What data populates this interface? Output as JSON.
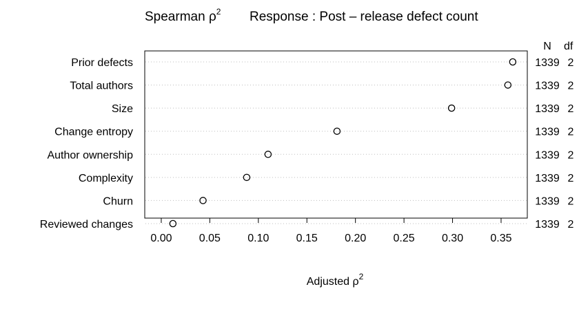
{
  "chart_data": {
    "type": "scatter",
    "title": {
      "left_main": "Spearman ρ",
      "left_sup": "2",
      "right": "Response : Post – release defect count"
    },
    "xlabel": {
      "main": "Adjusted ρ",
      "sup": "2"
    },
    "xlim": [
      -0.017,
      0.377
    ],
    "x_ticks": [
      "0.00",
      "0.05",
      "0.10",
      "0.15",
      "0.20",
      "0.25",
      "0.30",
      "0.35"
    ],
    "x_tick_values": [
      0.0,
      0.05,
      0.1,
      0.15,
      0.2,
      0.25,
      0.3,
      0.35
    ],
    "grid": "dotted horizontal guide lines per variable",
    "right_header": {
      "n": "N",
      "df": "df"
    },
    "points": [
      {
        "label": "Prior defects",
        "value": 0.362,
        "n": "1339",
        "df": "2"
      },
      {
        "label": "Total authors",
        "value": 0.357,
        "n": "1339",
        "df": "2"
      },
      {
        "label": "Size",
        "value": 0.299,
        "n": "1339",
        "df": "2"
      },
      {
        "label": "Change entropy",
        "value": 0.181,
        "n": "1339",
        "df": "2"
      },
      {
        "label": "Author ownership",
        "value": 0.11,
        "n": "1339",
        "df": "2"
      },
      {
        "label": "Complexity",
        "value": 0.088,
        "n": "1339",
        "df": "2"
      },
      {
        "label": "Churn",
        "value": 0.043,
        "n": "1339",
        "df": "2"
      },
      {
        "label": "Reviewed changes",
        "value": 0.012,
        "n": "1339",
        "df": "2"
      }
    ]
  }
}
